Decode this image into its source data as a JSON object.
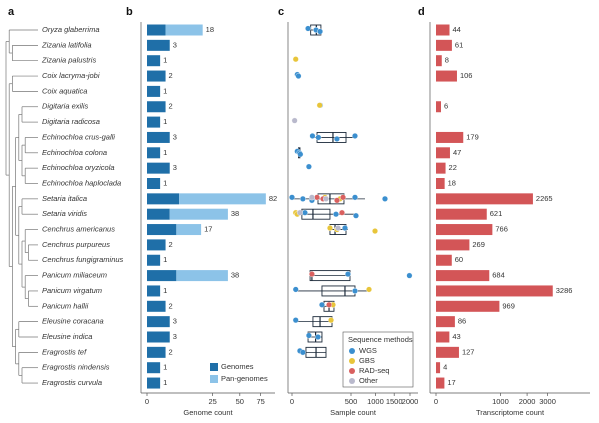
{
  "panel_labels": [
    "a",
    "b",
    "c",
    "d"
  ],
  "chart_data": [
    {
      "type": "bar",
      "stacked": true,
      "xscale": "sqrt",
      "xlabel": "Genome count",
      "categories": [
        "Oryza glaberrima",
        "Zizania latifolia",
        "Zizania palustris",
        "Coix lacryma-jobi",
        "Coix aquatica",
        "Digitaria exilis",
        "Digitaria radicosa",
        "Echinochloa crus-galli",
        "Echinochloa colona",
        "Echinochloa oryzicola",
        "Echinochloa haploclada",
        "Setaria italica",
        "Setaria viridis",
        "Cenchrus americanus",
        "Cenchrus purpureus",
        "Cenchrus fungigraminus",
        "Panicum miliaceum",
        "Panicum virgatum",
        "Panicum hallii",
        "Eleusine coracana",
        "Eleusine indica",
        "Eragrostis tef",
        "Eragrostis nindensis",
        "Eragrostis curvula"
      ],
      "series": [
        {
          "name": "Genomes",
          "color": "#1f6fa8",
          "values": [
            2,
            3,
            1,
            2,
            1,
            2,
            1,
            3,
            1,
            3,
            1,
            6,
            3,
            5,
            2,
            1,
            5,
            1,
            2,
            3,
            3,
            2,
            1,
            1
          ]
        },
        {
          "name": "Pan-genomes",
          "color": "#8cc3e8",
          "values": [
            16,
            null,
            null,
            null,
            null,
            null,
            null,
            null,
            null,
            null,
            null,
            76,
            35,
            12,
            null,
            null,
            33,
            null,
            null,
            null,
            null,
            null,
            null,
            null
          ]
        }
      ],
      "totals": [
        18,
        3,
        1,
        2,
        1,
        2,
        1,
        3,
        1,
        3,
        1,
        82,
        38,
        17,
        2,
        1,
        38,
        1,
        2,
        3,
        3,
        2,
        1,
        1
      ],
      "xlim": [
        0,
        85
      ],
      "xticks": [
        0,
        25,
        50,
        75
      ],
      "legend": "lower right"
    },
    {
      "type": "box",
      "xscale": "sqrt",
      "xlabel": "Sample count",
      "legend_title": "Sequence methods",
      "boxes": [
        [
          37,
          50,
          85,
          120,
          130
        ],
        null,
        null,
        null,
        null,
        null,
        null,
        [
          60,
          90,
          241,
          419,
          570
        ],
        [
          4,
          6,
          8,
          9,
          10
        ],
        null,
        null,
        [
          0,
          97,
          207,
          388,
          765
        ],
        [
          2,
          14,
          63,
          207,
          570
        ],
        [
          197,
          207,
          266,
          419,
          450
        ],
        null,
        null,
        [
          47,
          47,
          57,
          483,
          483
        ],
        [
          2,
          129,
          403,
          570,
          852
        ],
        [
          129,
          147,
          197,
          253,
          253
        ],
        [
          2,
          63,
          113,
          230,
          230
        ],
        [
          37,
          37,
          80,
          129,
          129
        ],
        [
          9,
          28,
          83,
          166,
          166
        ],
        null,
        null
      ],
      "series": [
        {
          "name": "WGS",
          "color": "#3b8fcf",
          "values": [
            [
              37,
              83,
              113
            ],
            [],
            [],
            [
              4,
              6
            ],
            [],
            [
              115
            ],
            [],
            [
              60,
              100,
              290,
              570
            ],
            [
              4,
              8,
              10
            ],
            [
              41
            ],
            [],
            [
              0,
              17,
              57,
              570,
              1242
            ],
            [
              24,
              278,
              588
            ],
            [
              403
            ],
            [],
            [],
            [
              450,
              1980
            ],
            [
              2,
              570
            ],
            [
              129
            ],
            [
              2
            ],
            [
              41,
              97
            ],
            [
              9,
              17
            ],
            [],
            []
          ]
        },
        {
          "name": "GBS",
          "color": "#e8c53a",
          "values": [
            [],
            [],
            [
              2
            ],
            [],
            [],
            [
              110
            ],
            [],
            [],
            [],
            [],
            [],
            [
              156,
              331
            ],
            [
              2,
              4
            ],
            [
              207,
              291,
              990
            ],
            [],
            [],
            [],
            [
              852
            ],
            [
              241
            ],
            [
              219
            ],
            [],
            [],
            [],
            []
          ]
        },
        {
          "name": "RAD-seq",
          "color": "#d9605f",
          "values": [
            [],
            [],
            [],
            [],
            [],
            [],
            [],
            [],
            [],
            [],
            [],
            [
              90,
              138,
              291,
              374
            ],
            [
              359
            ],
            [],
            [],
            [],
            [
              57
            ],
            [],
            [
              197
            ],
            [],
            [],
            [],
            [],
            []
          ]
        },
        {
          "name": "Other",
          "color": "#b9b9cc",
          "values": [
            [],
            [],
            [],
            [],
            [],
            [],
            [
              1
            ],
            [],
            [],
            [],
            [],
            [
              57,
              166
            ],
            [
              9
            ],
            [
              304
            ],
            [],
            [],
            [],
            [],
            [],
            [],
            [],
            [],
            [],
            []
          ]
        }
      ],
      "xlim": [
        0,
        2000
      ],
      "xticks": [
        0,
        500,
        1000,
        1500,
        2000
      ],
      "legend": "lower right"
    },
    {
      "type": "bar",
      "xscale": "sqrt",
      "xlabel": "Transcriptome count",
      "color": "#d35557",
      "values": [
        44,
        61,
        8,
        106,
        null,
        6,
        null,
        179,
        47,
        22,
        18,
        2265,
        621,
        766,
        269,
        60,
        684,
        3286,
        969,
        86,
        43,
        127,
        4,
        17
      ],
      "xlim": [
        0,
        3300
      ],
      "xticks": [
        0,
        1000,
        2000,
        3000
      ]
    }
  ]
}
